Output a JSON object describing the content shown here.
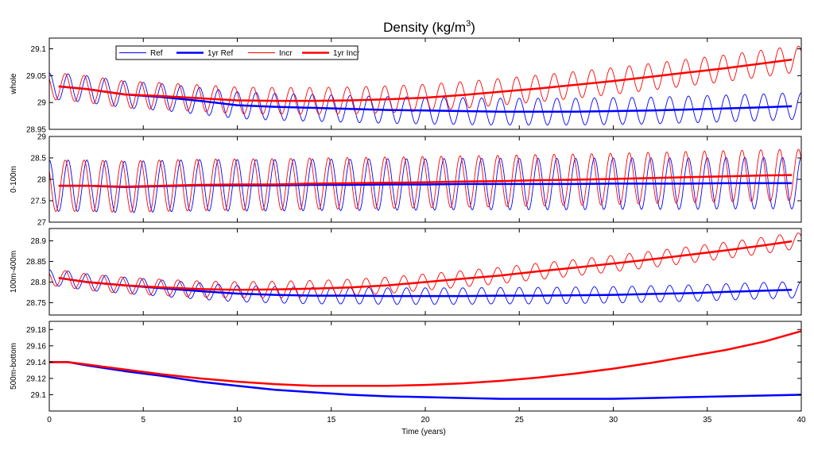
{
  "title": "Density (kg/m",
  "title_sup": "3",
  "title_close": ")",
  "chart_data": {
    "type": "line",
    "x_label": "Time (years)",
    "xlim": [
      0,
      40
    ],
    "x_ticks": [
      0,
      5,
      10,
      15,
      20,
      25,
      30,
      35,
      40
    ],
    "x_tick_labels": [
      "0",
      "5",
      "10",
      "15",
      "20",
      "25",
      "30",
      "35",
      "40"
    ],
    "legend": [
      {
        "name": "Ref",
        "color": "#0000ff",
        "width": 1
      },
      {
        "name": "1yr Ref",
        "color": "#0000ff",
        "width": 2.5
      },
      {
        "name": "Incr",
        "color": "#ff0000",
        "width": 1
      },
      {
        "name": "1yr Incr",
        "color": "#ff0000",
        "width": 2.5
      }
    ],
    "panels": [
      {
        "ylabel": "whole",
        "ylim": [
          28.95,
          29.12
        ],
        "y_ticks": [
          28.95,
          29,
          29.05,
          29.1
        ],
        "y_tick_labels": [
          "28.95",
          "29",
          "29.05",
          "29.1"
        ],
        "seasonal_amplitude": {
          "Ref": 0.025,
          "Incr": 0.025
        },
        "one_year_means": {
          "x": [
            0.5,
            2,
            4,
            6,
            8,
            10,
            12,
            14,
            16,
            18,
            20,
            22,
            24,
            26,
            28,
            30,
            32,
            34,
            36,
            38,
            39.5
          ],
          "1yr Ref": [
            29.03,
            29.025,
            29.015,
            29.01,
            29.003,
            28.995,
            28.992,
            28.99,
            28.988,
            28.986,
            28.985,
            28.984,
            28.983,
            28.983,
            28.983,
            28.984,
            28.985,
            28.987,
            28.989,
            28.991,
            28.993
          ],
          "1yr Incr": [
            29.03,
            29.025,
            29.015,
            29.012,
            29.008,
            29.004,
            29.003,
            29.003,
            29.004,
            29.006,
            29.009,
            29.014,
            29.02,
            29.026,
            29.033,
            29.04,
            29.048,
            29.056,
            29.064,
            29.073,
            29.08
          ]
        }
      },
      {
        "ylabel": "0-100m",
        "ylim": [
          27,
          29
        ],
        "y_ticks": [
          27,
          27.5,
          28,
          28.5,
          29
        ],
        "y_tick_labels": [
          "27",
          "27.5",
          "28",
          "28.5",
          "29"
        ],
        "seasonal_amplitude": {
          "Ref": 0.6,
          "Incr": 0.6
        },
        "one_year_means": {
          "x": [
            0.5,
            2,
            4,
            6,
            8,
            10,
            12,
            14,
            16,
            18,
            20,
            22,
            24,
            26,
            28,
            30,
            32,
            34,
            36,
            38,
            39.5
          ],
          "1yr Ref": [
            27.85,
            27.85,
            27.82,
            27.84,
            27.86,
            27.86,
            27.86,
            27.87,
            27.87,
            27.88,
            27.88,
            27.89,
            27.89,
            27.89,
            27.89,
            27.9,
            27.9,
            27.9,
            27.91,
            27.91,
            27.91
          ],
          "1yr Incr": [
            27.85,
            27.85,
            27.83,
            27.85,
            27.87,
            27.88,
            27.88,
            27.9,
            27.91,
            27.92,
            27.93,
            27.95,
            27.96,
            27.98,
            27.99,
            28.01,
            28.03,
            28.05,
            28.07,
            28.09,
            28.1
          ]
        }
      },
      {
        "ylabel": "100m-400m",
        "ylim": [
          28.72,
          28.93
        ],
        "y_ticks": [
          28.75,
          28.8,
          28.85,
          28.9
        ],
        "y_tick_labels": [
          "28.75",
          "28.8",
          "28.85",
          "28.9"
        ],
        "seasonal_amplitude": {
          "Ref": 0.02,
          "Incr": 0.02
        },
        "one_year_means": {
          "x": [
            0.5,
            2,
            4,
            6,
            8,
            10,
            12,
            14,
            16,
            18,
            20,
            22,
            24,
            26,
            28,
            30,
            32,
            34,
            36,
            38,
            39.5
          ],
          "1yr Ref": [
            28.81,
            28.8,
            28.792,
            28.785,
            28.778,
            28.772,
            28.769,
            28.767,
            28.767,
            28.766,
            28.766,
            28.766,
            28.767,
            28.767,
            28.768,
            28.769,
            28.771,
            28.773,
            28.776,
            28.779,
            28.781
          ],
          "1yr Incr": [
            28.81,
            28.8,
            28.792,
            28.787,
            28.783,
            28.781,
            28.782,
            28.784,
            28.787,
            28.792,
            28.8,
            28.808,
            28.816,
            28.826,
            28.835,
            28.845,
            28.855,
            28.866,
            28.877,
            28.889,
            28.899
          ]
        }
      },
      {
        "ylabel": "500m-bottom",
        "ylim": [
          29.08,
          29.19
        ],
        "y_ticks": [
          29.1,
          29.12,
          29.14,
          29.16,
          29.18
        ],
        "y_tick_labels": [
          "29.1",
          "29.12",
          "29.14",
          "29.16",
          "29.18"
        ],
        "seasonal_amplitude": {
          "Ref": 0,
          "Incr": 0
        },
        "one_year_means": {
          "x": [
            0,
            1,
            2,
            4,
            6,
            8,
            10,
            12,
            14,
            16,
            18,
            20,
            22,
            24,
            26,
            28,
            30,
            32,
            34,
            36,
            38,
            40
          ],
          "1yr Ref": [
            29.14,
            29.14,
            29.136,
            29.129,
            29.123,
            29.116,
            29.111,
            29.106,
            29.103,
            29.1,
            29.098,
            29.097,
            29.096,
            29.095,
            29.095,
            29.095,
            29.095,
            29.096,
            29.097,
            29.098,
            29.099,
            29.1
          ],
          "1yr Incr": [
            29.14,
            29.14,
            29.137,
            29.131,
            29.125,
            29.12,
            29.116,
            29.113,
            29.111,
            29.111,
            29.111,
            29.112,
            29.114,
            29.117,
            29.121,
            29.126,
            29.132,
            29.139,
            29.147,
            29.155,
            29.165,
            29.178
          ]
        }
      }
    ]
  }
}
